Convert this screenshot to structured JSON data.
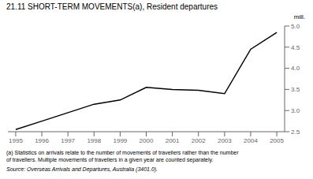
{
  "chart_data": {
    "type": "line",
    "title": "21.11  SHORT-TERM MOVEMENTS(a), Resident departures",
    "ylabel": "mill.",
    "x": [
      1995,
      1996,
      1997,
      1998,
      1999,
      2000,
      2001,
      2002,
      2003,
      2004,
      2005
    ],
    "values": [
      2.55,
      2.75,
      2.95,
      3.15,
      3.25,
      3.55,
      3.5,
      3.48,
      3.4,
      4.45,
      4.85
    ],
    "color": "#000000",
    "xlim": [
      1994.7,
      2005.3
    ],
    "xticks": [
      1995,
      1996,
      1997,
      1998,
      1999,
      2000,
      2001,
      2002,
      2003,
      2004,
      2005
    ],
    "ylim": [
      2.5,
      5.0
    ],
    "yticks": [
      2.5,
      {
        "value": 3,
        "label": "3.0"
      },
      3.5,
      {
        "value": 4,
        "label": "4.0"
      },
      4.5,
      {
        "value": 5,
        "label": "5.0"
      }
    ],
    "grid": false,
    "annotations": [
      "(a) Statistics on arrivals relate to the number of movements of travellers rather than the number",
      "of travellers. Multiple movements of travellers in a given year are counted separately.",
      "Source: Overseas Arrivals and Departures, Australia (3401.0)."
    ]
  }
}
